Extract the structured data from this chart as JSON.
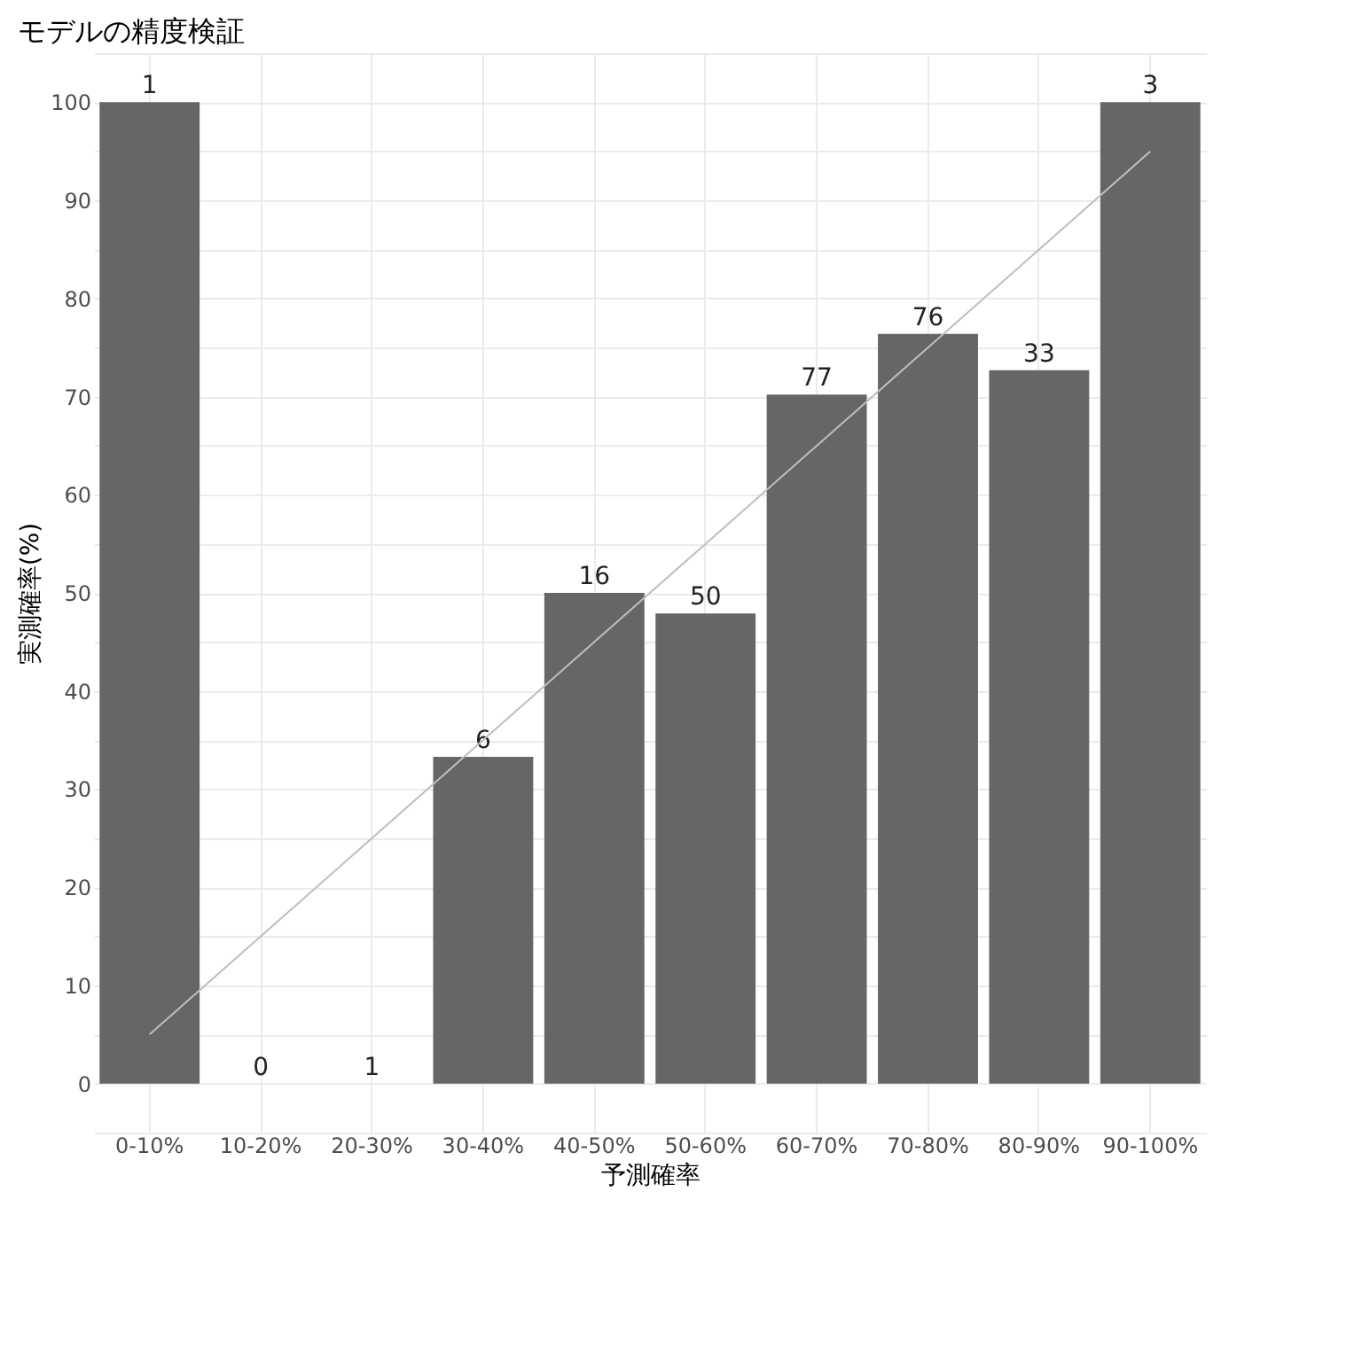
{
  "chart_data": {
    "type": "bar",
    "title": "モデルの精度検証",
    "xlabel": "予測確率",
    "ylabel": "実測確率(%)",
    "categories": [
      "0-10%",
      "10-20%",
      "20-30%",
      "30-40%",
      "40-50%",
      "50-60%",
      "60-70%",
      "70-80%",
      "80-90%",
      "90-100%"
    ],
    "series": [
      {
        "color": "#666666",
        "values": [
          100,
          0,
          0,
          33.3,
          50,
          47.9,
          70.2,
          76.4,
          72.7,
          100
        ]
      },
      {
        "type": "line",
        "color": "#bebebe",
        "values": [
          5,
          15,
          25,
          35,
          45,
          55,
          65,
          75,
          85,
          95
        ]
      }
    ],
    "ylim": [
      -5,
      105
    ],
    "yticks": [
      {
        "value": -5,
        "label": null
      },
      0,
      {
        "value": 5,
        "label": null
      },
      10,
      {
        "value": 15,
        "label": null
      },
      20,
      {
        "value": 25,
        "label": null
      },
      30,
      {
        "value": 35,
        "label": null
      },
      40,
      {
        "value": 45,
        "label": null
      },
      50,
      {
        "value": 55,
        "label": null
      },
      60,
      {
        "value": 65,
        "label": null
      },
      70,
      {
        "value": 75,
        "label": null
      },
      80,
      {
        "value": 85,
        "label": null
      },
      90,
      {
        "value": 95,
        "label": null
      },
      100,
      {
        "value": 105,
        "label": null
      }
    ],
    "grid": true,
    "annotations": [
      {
        "text": "1",
        "x": "0-10%",
        "y": 100
      },
      {
        "text": "0",
        "x": "10-20%",
        "y": 0
      },
      {
        "text": "1",
        "x": "20-30%",
        "y": 0
      },
      {
        "text": "6",
        "x": "30-40%",
        "y": 33.3
      },
      {
        "text": "16",
        "x": "40-50%",
        "y": 50
      },
      {
        "text": "50",
        "x": "50-60%",
        "y": 47.9
      },
      {
        "text": "77",
        "x": "60-70%",
        "y": 70.2
      },
      {
        "text": "76",
        "x": "70-80%",
        "y": 76.4
      },
      {
        "text": "33",
        "x": "80-90%",
        "y": 72.7
      },
      {
        "text": "3",
        "x": "90-100%",
        "y": 100
      }
    ]
  }
}
